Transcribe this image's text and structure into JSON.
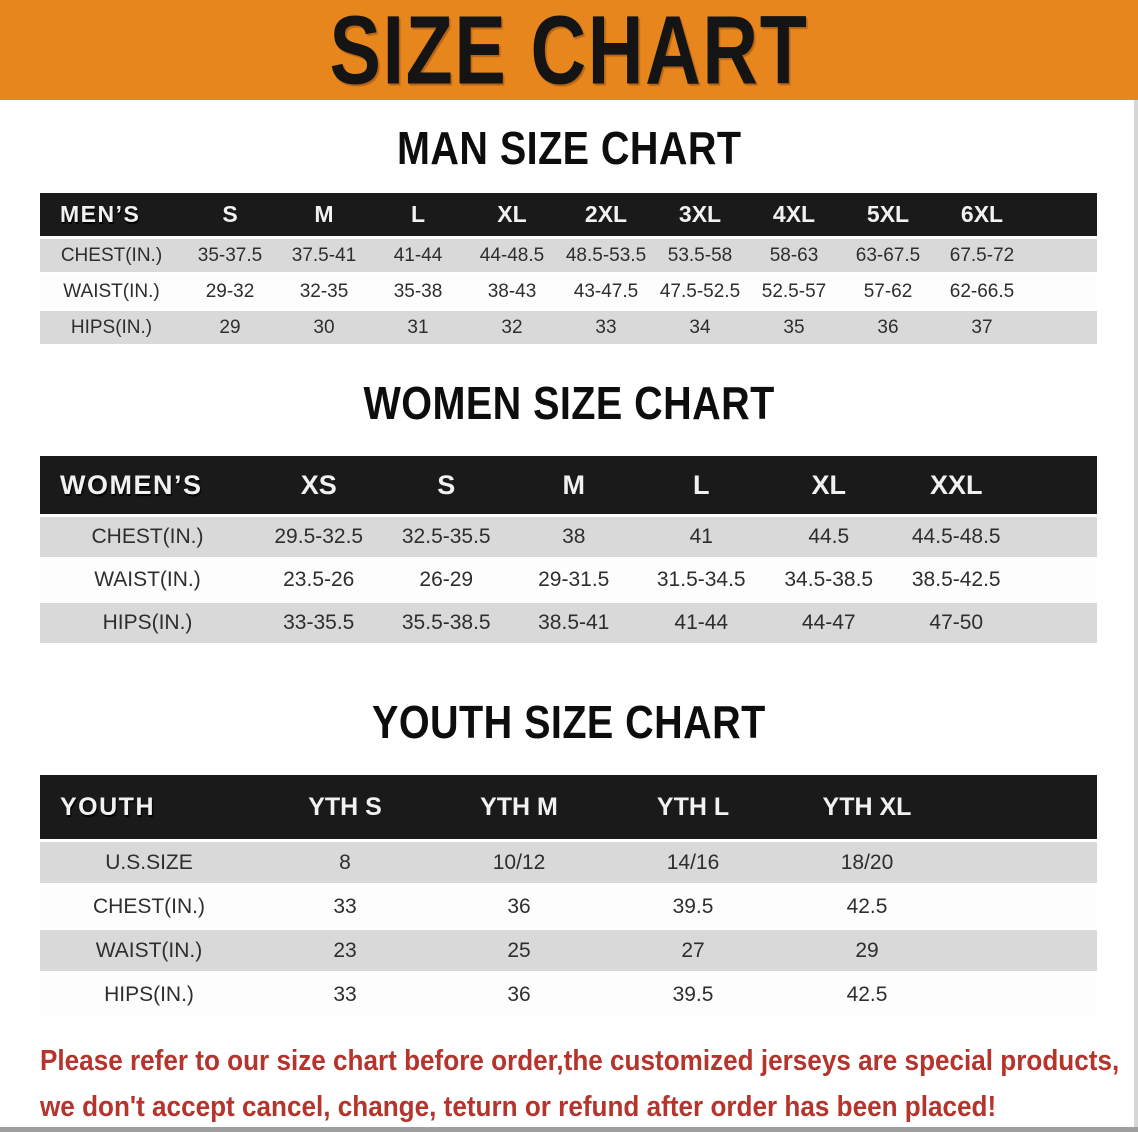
{
  "banner": {
    "title": "SIZE CHART",
    "bg_color": "#E8861E",
    "text_color": "#141414"
  },
  "sections": [
    {
      "id": "men",
      "heading": "MAN SIZE CHART",
      "table": {
        "corner": "MEN’S",
        "columns": [
          "S",
          "M",
          "L",
          "XL",
          "2XL",
          "3XL",
          "4XL",
          "5XL",
          "6XL"
        ],
        "rows": [
          {
            "label": "CHEST(IN.)",
            "values": [
              "35-37.5",
              "37.5-41",
              "41-44",
              "44-48.5",
              "48.5-53.5",
              "53.5-58",
              "58-63",
              "63-67.5",
              "67.5-72"
            ]
          },
          {
            "label": "WAIST(IN.)",
            "values": [
              "29-32",
              "32-35",
              "35-38",
              "38-43",
              "43-47.5",
              "47.5-52.5",
              "52.5-57",
              "57-62",
              "62-66.5"
            ]
          },
          {
            "label": "HIPS(IN.)",
            "values": [
              "29",
              "30",
              "31",
              "32",
              "33",
              "34",
              "35",
              "36",
              "37"
            ]
          }
        ]
      }
    },
    {
      "id": "women",
      "heading": "WOMEN SIZE CHART",
      "table": {
        "corner": "WOMEN’S",
        "columns": [
          "XS",
          "S",
          "M",
          "L",
          "XL",
          "XXL"
        ],
        "rows": [
          {
            "label": "CHEST(IN.)",
            "values": [
              "29.5-32.5",
              "32.5-35.5",
              "38",
              "41",
              "44.5",
              "44.5-48.5"
            ]
          },
          {
            "label": "WAIST(IN.)",
            "values": [
              "23.5-26",
              "26-29",
              "29-31.5",
              "31.5-34.5",
              "34.5-38.5",
              "38.5-42.5"
            ]
          },
          {
            "label": "HIPS(IN.)",
            "values": [
              "33-35.5",
              "35.5-38.5",
              "38.5-41",
              "41-44",
              "44-47",
              "47-50"
            ]
          }
        ]
      }
    },
    {
      "id": "youth",
      "heading": "YOUTH SIZE CHART",
      "table": {
        "corner": "YOUTH",
        "columns": [
          "YTH S",
          "YTH M",
          "YTH L",
          "YTH XL"
        ],
        "rows": [
          {
            "label": "U.S.SIZE",
            "values": [
              "8",
              "10/12",
              "14/16",
              "18/20"
            ]
          },
          {
            "label": "CHEST(IN.)",
            "values": [
              "33",
              "36",
              "39.5",
              "42.5"
            ]
          },
          {
            "label": "WAIST(IN.)",
            "values": [
              "23",
              "25",
              "27",
              "29"
            ]
          },
          {
            "label": "HIPS(IN.)",
            "values": [
              "33",
              "36",
              "39.5",
              "42.5"
            ]
          }
        ]
      }
    }
  ],
  "disclaimer": {
    "line1": "Please refer to our size chart before order,the customized jerseys are special products,",
    "line2": "we don't accept cancel, change, teturn or refund after order has been placed!",
    "color": "#B5342B"
  },
  "style_colors": {
    "header_bar": "#1a1a1a",
    "shaded_row": "#d9d9d9"
  }
}
